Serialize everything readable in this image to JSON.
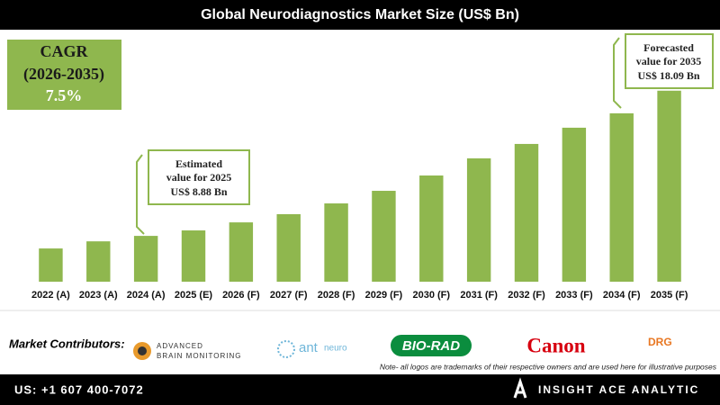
{
  "chart_data": {
    "type": "bar",
    "title": "Global Neurodiagnostics Market Size (US$ Bn)",
    "categories": [
      "2022 (A)",
      "2023 (A)",
      "2024 (A)",
      "2025 (E)",
      "2026 (F)",
      "2027 (F)",
      "2028 (F)",
      "2029 (F)",
      "2030 (F)",
      "2031 (F)",
      "2032 (F)",
      "2033 (F)",
      "2034 (F)",
      "2035 (F)"
    ],
    "values": [
      7.69,
      8.16,
      8.52,
      8.88,
      9.41,
      9.95,
      10.66,
      11.49,
      12.5,
      13.63,
      14.58,
      15.65,
      16.6,
      18.09
    ],
    "color": "#8fb74e",
    "ylim": [
      5.5,
      19.5
    ],
    "grid": false,
    "cagr": [
      "CAGR",
      "(2026-2035)",
      "7.5%"
    ],
    "annotations": [
      {
        "lines": [
          "Estimated",
          "value for 2025",
          "US$ 8.88 Bn"
        ]
      },
      {
        "lines": [
          "Forecasted",
          "value for 2035",
          "US$ 18.09 Bn"
        ]
      }
    ]
  },
  "contributors": {
    "label": "Market Contributors:",
    "logos": [
      "ADVANCED",
      "BRAIN MONITORING",
      "ant",
      "neuro",
      "BIO-RAD",
      "Canon",
      "DRG"
    ],
    "note": "Note- all logos are trademarks of their respective owners and are used here for illustrative purposes"
  },
  "footer": {
    "phone": "US: +1 607 400-7072",
    "brand": "INSIGHT ACE ANALYTIC"
  }
}
